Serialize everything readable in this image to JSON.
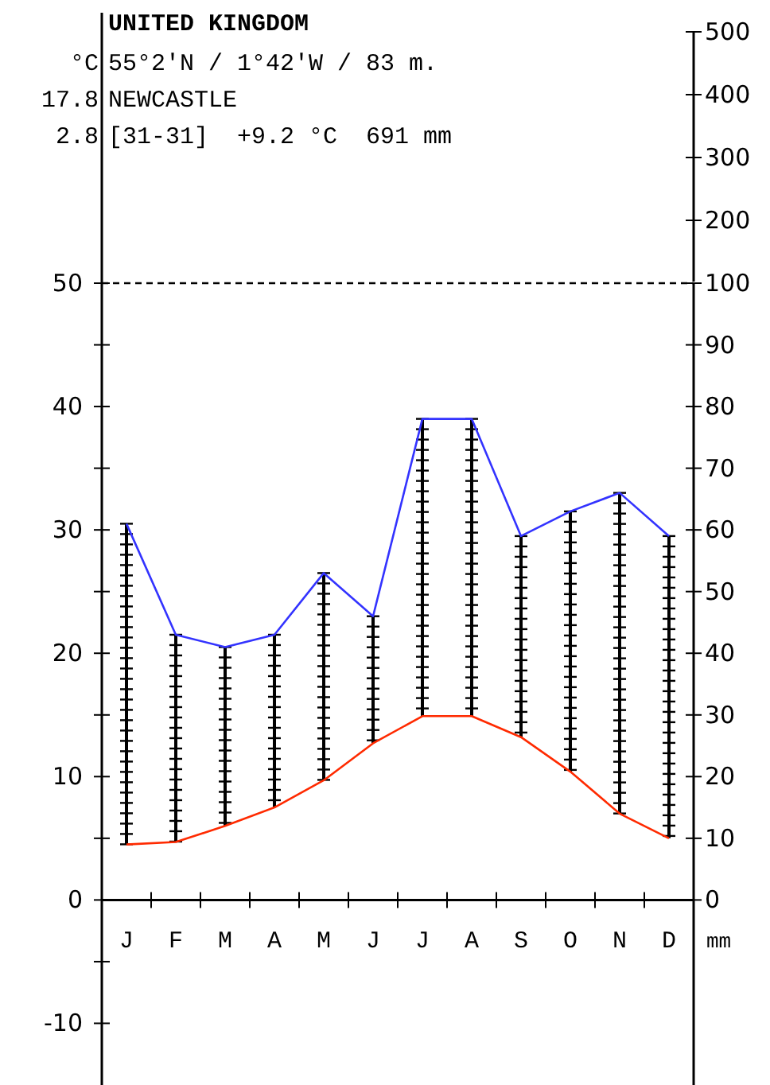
{
  "chart_data": {
    "type": "line",
    "title": "UNITED KINGDOM",
    "subtitle": "55°2'N / 1°42'W / 83 m.",
    "ylabel": "°C",
    "y2label": "mm",
    "annotations": [
      "NEWCASTLE",
      "17.8",
      "2.8",
      "[31-31]  +9.2 °C  691 mm"
    ],
    "categories": [
      "J",
      "F",
      "M",
      "A",
      "M",
      "J",
      "J",
      "A",
      "S",
      "O",
      "N",
      "D"
    ],
    "series": [
      {
        "color": "#ff2a00",
        "values": [
          4.5,
          4.7,
          6.0,
          7.5,
          9.7,
          12.7,
          14.9,
          14.9,
          13.2,
          10.4,
          7.0,
          5.0
        ]
      },
      {
        "color": "#3333ff",
        "axis": "y2",
        "values": [
          61,
          43,
          41,
          43,
          53,
          46,
          78,
          78,
          59,
          63,
          66,
          59
        ]
      }
    ],
    "ylim": [
      -15,
      50
    ],
    "yticks": [
      -10,
      {
        "value": -5,
        "label": null
      },
      0,
      {
        "value": 5,
        "label": null
      },
      10,
      {
        "value": 15,
        "label": null
      },
      20,
      {
        "value": 25,
        "label": null
      },
      30,
      {
        "value": 35,
        "label": null
      },
      40,
      {
        "value": 45,
        "label": null
      },
      50
    ],
    "y2lim": [
      -30,
      100
    ],
    "y2ticks": [
      0,
      10,
      20,
      30,
      40,
      50,
      60,
      70,
      80,
      90,
      100
    ],
    "y3lim": [
      100,
      500
    ],
    "y3ticks": [
      200,
      300,
      400,
      500
    ],
    "ref_lines": [
      {
        "axis": "y",
        "value": 50,
        "line_style": "dashed",
        "color": "#000000"
      }
    ],
    "marker": "none",
    "line_style": "solid"
  }
}
